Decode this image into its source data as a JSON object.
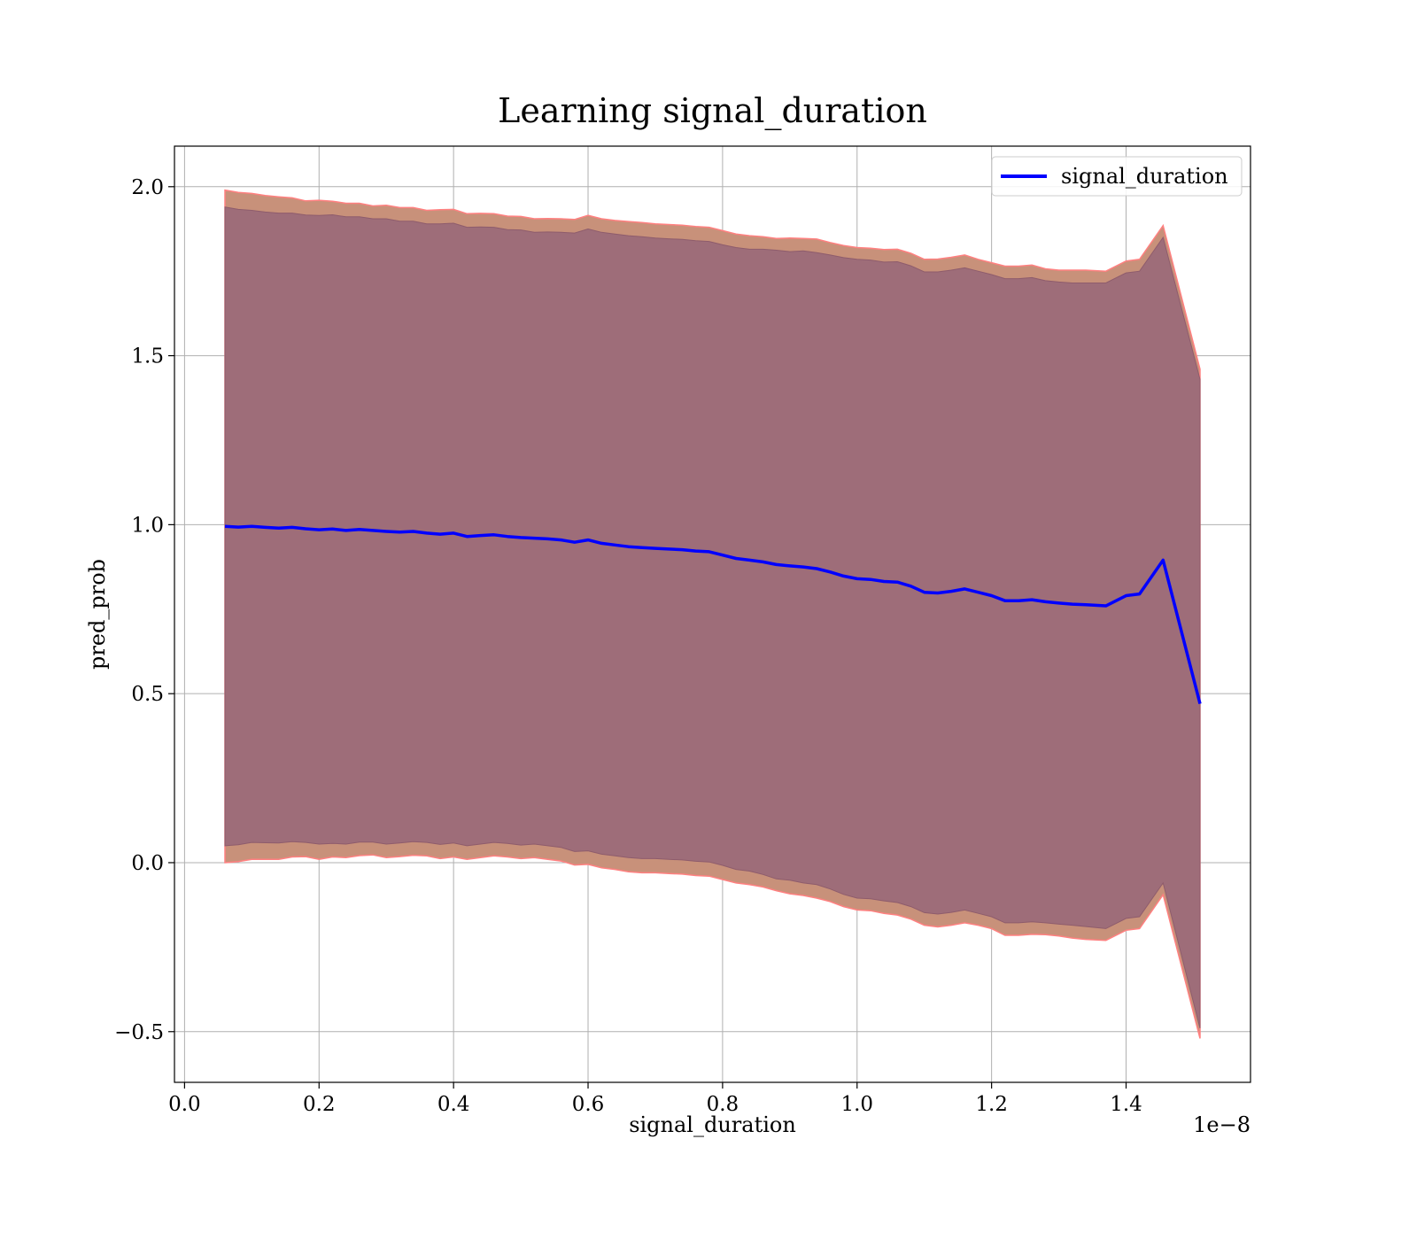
{
  "chart_data": {
    "type": "line",
    "title": "Learning signal_duration",
    "xlabel": "signal_duration",
    "ylabel": "pred_prob",
    "x_offset_text": "1e−8",
    "xlim": [
      -0.015,
      1.585
    ],
    "ylim": [
      -0.65,
      2.12
    ],
    "x_ticks": [
      0.0,
      0.2,
      0.4,
      0.6,
      0.8,
      1.0,
      1.2,
      1.4
    ],
    "x_tick_labels": [
      "0.0",
      "0.2",
      "0.4",
      "0.6",
      "0.8",
      "1.0",
      "1.2",
      "1.4"
    ],
    "y_ticks": [
      -0.5,
      0.0,
      0.5,
      1.0,
      1.5,
      2.0
    ],
    "y_tick_labels": [
      "−0.5",
      "0.0",
      "0.5",
      "1.0",
      "1.5",
      "2.0"
    ],
    "grid": true,
    "legend_position": "top-right",
    "colors": {
      "line": "#0000ff",
      "outer_band": "#c8917a",
      "outer_band_edge": "#ff8080",
      "inner_band": "#9e6d79",
      "grid": "#b0b0b0"
    },
    "series": [
      {
        "name": "signal_duration",
        "x": [
          0.06,
          0.08,
          0.1,
          0.12,
          0.14,
          0.16,
          0.18,
          0.2,
          0.22,
          0.24,
          0.26,
          0.28,
          0.3,
          0.32,
          0.34,
          0.36,
          0.38,
          0.4,
          0.42,
          0.44,
          0.46,
          0.48,
          0.5,
          0.52,
          0.54,
          0.56,
          0.58,
          0.6,
          0.62,
          0.64,
          0.66,
          0.68,
          0.7,
          0.72,
          0.74,
          0.76,
          0.78,
          0.8,
          0.82,
          0.84,
          0.86,
          0.88,
          0.9,
          0.92,
          0.94,
          0.96,
          0.98,
          1.0,
          1.02,
          1.04,
          1.06,
          1.08,
          1.1,
          1.12,
          1.14,
          1.16,
          1.18,
          1.2,
          1.22,
          1.24,
          1.26,
          1.28,
          1.3,
          1.32,
          1.34,
          1.37,
          1.4,
          1.42,
          1.455,
          1.51
        ],
        "values": [
          0.995,
          0.993,
          0.995,
          0.992,
          0.99,
          0.992,
          0.988,
          0.985,
          0.987,
          0.983,
          0.986,
          0.983,
          0.98,
          0.978,
          0.98,
          0.975,
          0.972,
          0.975,
          0.965,
          0.968,
          0.97,
          0.965,
          0.962,
          0.96,
          0.958,
          0.955,
          0.948,
          0.955,
          0.945,
          0.94,
          0.935,
          0.932,
          0.93,
          0.928,
          0.926,
          0.922,
          0.92,
          0.91,
          0.9,
          0.895,
          0.89,
          0.882,
          0.878,
          0.875,
          0.87,
          0.86,
          0.848,
          0.84,
          0.838,
          0.832,
          0.83,
          0.818,
          0.8,
          0.798,
          0.803,
          0.81,
          0.8,
          0.79,
          0.775,
          0.775,
          0.778,
          0.772,
          0.768,
          0.765,
          0.763,
          0.76,
          0.79,
          0.795,
          0.895,
          0.47
        ],
        "std_outer": [
          0.995,
          0.99,
          0.985,
          0.982,
          0.98,
          0.975,
          0.97,
          0.975,
          0.97,
          0.968,
          0.965,
          0.96,
          0.965,
          0.96,
          0.958,
          0.955,
          0.96,
          0.958,
          0.955,
          0.953,
          0.95,
          0.948,
          0.95,
          0.945,
          0.948,
          0.95,
          0.955,
          0.96,
          0.96,
          0.96,
          0.962,
          0.962,
          0.96,
          0.96,
          0.96,
          0.96,
          0.96,
          0.96,
          0.96,
          0.96,
          0.962,
          0.965,
          0.97,
          0.972,
          0.975,
          0.975,
          0.978,
          0.98,
          0.98,
          0.982,
          0.985,
          0.985,
          0.985,
          0.988,
          0.988,
          0.988,
          0.985,
          0.985,
          0.99,
          0.99,
          0.99,
          0.985,
          0.985,
          0.988,
          0.99,
          0.99,
          0.99,
          0.99,
          0.99,
          0.99
        ],
        "std_inner": [
          0.945,
          0.94,
          0.935,
          0.933,
          0.932,
          0.93,
          0.928,
          0.93,
          0.93,
          0.928,
          0.925,
          0.922,
          0.925,
          0.92,
          0.918,
          0.915,
          0.918,
          0.917,
          0.915,
          0.913,
          0.91,
          0.908,
          0.91,
          0.905,
          0.908,
          0.91,
          0.915,
          0.92,
          0.92,
          0.92,
          0.92,
          0.92,
          0.918,
          0.918,
          0.918,
          0.918,
          0.918,
          0.918,
          0.92,
          0.92,
          0.925,
          0.93,
          0.93,
          0.935,
          0.935,
          0.938,
          0.942,
          0.945,
          0.945,
          0.945,
          0.948,
          0.948,
          0.948,
          0.95,
          0.95,
          0.95,
          0.95,
          0.95,
          0.953,
          0.953,
          0.953,
          0.95,
          0.95,
          0.95,
          0.952,
          0.955,
          0.955,
          0.955,
          0.955,
          0.96
        ]
      }
    ]
  }
}
